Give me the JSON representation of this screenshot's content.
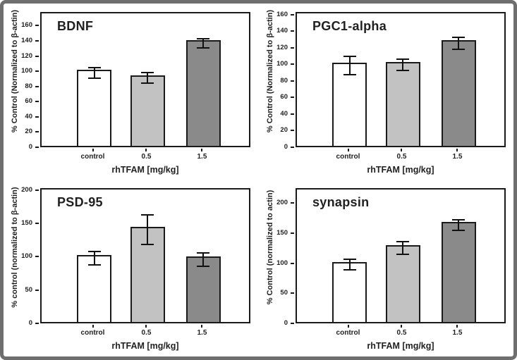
{
  "figure": {
    "background": "#ffffff",
    "border_color": "#6e6e6e",
    "bar_fill_colors": [
      "#ffffff",
      "#c2c2c2",
      "#8a8a8a"
    ],
    "bar_border_color": "#1a1a1a",
    "error_bar_color": "#111111"
  },
  "chart_data": [
    {
      "type": "bar",
      "panel": "top-left",
      "title": "BDNF",
      "ylabel": "% Control (Normalized to β-actin)",
      "xlabel": "rhTFAM [mg/kg]",
      "categories": [
        "control",
        "0.5",
        "1.5"
      ],
      "values": [
        100,
        93,
        139
      ],
      "errors": [
        8,
        8,
        7
      ],
      "yticks": [
        0,
        20,
        40,
        60,
        80,
        100,
        120,
        140,
        160
      ],
      "ylim": [
        0,
        178
      ],
      "grid": false,
      "legend": "none"
    },
    {
      "type": "bar",
      "panel": "top-right",
      "title": "PGC1-alpha",
      "ylabel": "% Control (Normalized to β-actin)",
      "xlabel": "rhTFAM [mg/kg]",
      "categories": [
        "control",
        "0.5",
        "1.5"
      ],
      "values": [
        100,
        101,
        127
      ],
      "errors": [
        12,
        8,
        8
      ],
      "yticks": [
        0,
        20,
        40,
        60,
        80,
        100,
        120,
        140,
        160
      ],
      "ylim": [
        0,
        163
      ],
      "grid": false,
      "legend": "none"
    },
    {
      "type": "bar",
      "panel": "bottom-left",
      "title": "PSD-95",
      "ylabel": "% control (normalized to β-actin)",
      "xlabel": "rhTFAM [mg/kg]",
      "categories": [
        "control",
        "0.5",
        "1.5"
      ],
      "values": [
        100,
        143,
        98
      ],
      "errors": [
        11,
        23,
        11
      ],
      "yticks": [
        0,
        50,
        100,
        150,
        200
      ],
      "ylim": [
        0,
        203
      ],
      "grid": false,
      "legend": "none"
    },
    {
      "type": "bar",
      "panel": "bottom-right",
      "title": "synapsin",
      "ylabel": "% Control (normalized to actin)",
      "xlabel": "rhTFAM [mg/kg]",
      "categories": [
        "control",
        "0.5",
        "1.5"
      ],
      "values": [
        100,
        128,
        166
      ],
      "errors": [
        10,
        12,
        10
      ],
      "yticks": [
        0,
        50,
        100,
        150,
        200
      ],
      "ylim": [
        0,
        225
      ],
      "grid": false,
      "legend": "none"
    }
  ]
}
